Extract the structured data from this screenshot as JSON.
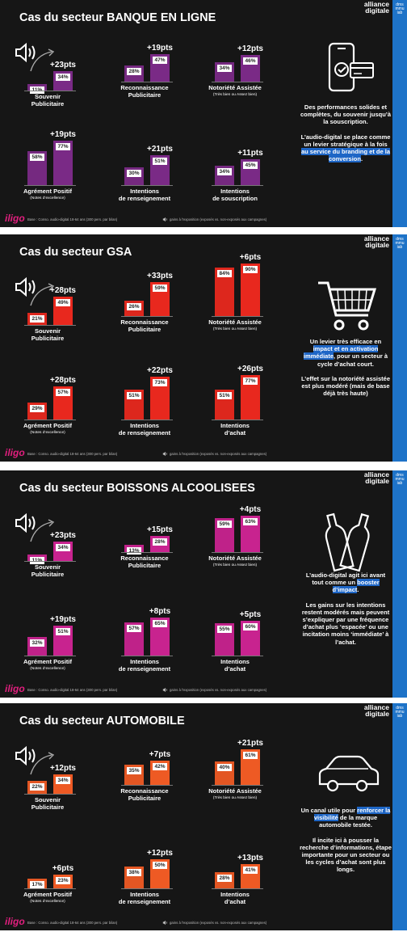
{
  "brand": {
    "line1": "alliance",
    "line2": "digitale",
    "strip": "dms\nmmu\niab"
  },
  "footer": {
    "logo": "iligo",
    "base": "Base : Conso. audio-digital 18-64 ans (300 pers. par bilan)",
    "legend": "gains à l'exposition (exposés vs. non-exposés aux campagnes)"
  },
  "colors": {
    "banque": "#7a2a86",
    "gsa": "#e8281e",
    "boissons": "#c8238f",
    "auto": "#ee5a24"
  },
  "panels": [
    {
      "title": "Cas du secteur BANQUE EN LIGNE",
      "icon": "phone-card-icon",
      "side": [
        {
          "parts": [
            {
              "t": "Des performances solides et complètes, du souvenir jusqu’à la souscription.",
              "h": false
            }
          ]
        },
        {
          "parts": [
            {
              "t": "L’audio-digital se place comme un levier stratégique à la fois ",
              "h": false
            },
            {
              "t": "au service du branding et de la conversion",
              "h": true
            },
            {
              "t": ".",
              "h": false
            }
          ]
        }
      ]
    },
    {
      "title": "Cas du secteur GSA",
      "icon": "shopping-cart-icon",
      "side": [
        {
          "parts": [
            {
              "t": "Un levier très efficace en ",
              "h": false
            },
            {
              "t": "impact et en activation immédiate",
              "h": true
            },
            {
              "t": ", pour un secteur à cycle d’achat court.",
              "h": false
            }
          ]
        },
        {
          "parts": [
            {
              "t": "L’effet sur la notoriété assistée est plus modéré (mais de base déjà très haute)",
              "h": false
            }
          ]
        }
      ]
    },
    {
      "title": "Cas du secteur BOISSONS ALCOOLISEES",
      "icon": "bottles-icon",
      "side": [
        {
          "parts": [
            {
              "t": "L’audio-digital agit ici avant tout comme un ",
              "h": false
            },
            {
              "t": "booster d’impact",
              "h": true
            },
            {
              "t": ".",
              "h": false
            }
          ]
        },
        {
          "parts": [
            {
              "t": "Les gains sur les intentions restent modérés mais peuvent s’expliquer par une fréquence d’achat plus ‘espacée’ ou une incitation moins ‘immédiate’ à l’achat.",
              "h": false
            }
          ]
        }
      ]
    },
    {
      "title": "Cas du secteur AUTOMOBILE",
      "icon": "car-icon",
      "side": [
        {
          "parts": [
            {
              "t": "Un canal utile pour ",
              "h": false
            },
            {
              "t": "renforcer la visibilité",
              "h": true
            },
            {
              "t": " de la marque automobile testée.",
              "h": false
            }
          ]
        },
        {
          "parts": [
            {
              "t": "Il incite ici à pousser la recherche d’informations, étape importante pour un secteur ou les cycles d’achat sont plus longs.",
              "h": false
            }
          ]
        }
      ]
    }
  ],
  "chart_data": [
    {
      "type": "bar",
      "title": "Cas du secteur BANQUE EN LIGNE",
      "color": "#7a2a86",
      "groups": [
        {
          "label": "Souvenir\nPublicitaire",
          "sub": "",
          "values": [
            11,
            34
          ],
          "gain": "+23pts"
        },
        {
          "label": "Reconnaissance\nPublicitaire",
          "sub": "",
          "values": [
            28,
            47
          ],
          "gain": "+19pts"
        },
        {
          "label": "Notoriété Assistée",
          "sub": "(Très bien ou Assez bien)",
          "values": [
            34,
            46
          ],
          "gain": "+12pts"
        },
        {
          "label": "Agrément Positif",
          "sub": "(Notes d’excellence)",
          "values": [
            58,
            77
          ],
          "gain": "+19pts"
        },
        {
          "label": "Intentions\nde renseignement",
          "sub": "",
          "values": [
            30,
            51
          ],
          "gain": "+21pts"
        },
        {
          "label": "Intentions\nde souscription",
          "sub": "",
          "values": [
            34,
            45
          ],
          "gain": "+11pts"
        }
      ]
    },
    {
      "type": "bar",
      "title": "Cas du secteur GSA",
      "color": "#e8281e",
      "groups": [
        {
          "label": "Souvenir\nPublicitaire",
          "sub": "",
          "values": [
            21,
            49
          ],
          "gain": "+28pts"
        },
        {
          "label": "Reconnaissance\nPublicitaire",
          "sub": "",
          "values": [
            26,
            59
          ],
          "gain": "+33pts"
        },
        {
          "label": "Notoriété Assistée",
          "sub": "(Très bien ou Assez bien)",
          "values": [
            84,
            90
          ],
          "gain": "+6pts"
        },
        {
          "label": "Agrément Positif",
          "sub": "(Notes d’excellence)",
          "values": [
            29,
            57
          ],
          "gain": "+28pts"
        },
        {
          "label": "Intentions\nde renseignement",
          "sub": "",
          "values": [
            51,
            73
          ],
          "gain": "+22pts"
        },
        {
          "label": "Intentions\nd’achat",
          "sub": "",
          "values": [
            51,
            77
          ],
          "gain": "+26pts"
        }
      ]
    },
    {
      "type": "bar",
      "title": "Cas du secteur BOISSONS ALCOOLISEES",
      "color": "#c8238f",
      "groups": [
        {
          "label": "Souvenir\nPublicitaire",
          "sub": "",
          "values": [
            11,
            34
          ],
          "gain": "+23pts"
        },
        {
          "label": "Reconnaissance\nPublicitaire",
          "sub": "",
          "values": [
            13,
            28
          ],
          "gain": "+15pts"
        },
        {
          "label": "Notoriété Assistée",
          "sub": "(Très bien ou Assez bien)",
          "values": [
            59,
            63
          ],
          "gain": "+4pts"
        },
        {
          "label": "Agrément Positif",
          "sub": "(Notes d’excellence)",
          "values": [
            32,
            51
          ],
          "gain": "+19pts"
        },
        {
          "label": "Intentions\nde renseignement",
          "sub": "",
          "values": [
            57,
            65
          ],
          "gain": "+8pts"
        },
        {
          "label": "Intentions\nd’achat",
          "sub": "",
          "values": [
            55,
            60
          ],
          "gain": "+5pts"
        }
      ]
    },
    {
      "type": "bar",
      "title": "Cas du secteur AUTOMOBILE",
      "color": "#ee5a24",
      "groups": [
        {
          "label": "Souvenir\nPublicitaire",
          "sub": "",
          "values": [
            22,
            34
          ],
          "gain": "+12pts"
        },
        {
          "label": "Reconnaissance\nPublicitaire",
          "sub": "",
          "values": [
            35,
            42
          ],
          "gain": "+7pts"
        },
        {
          "label": "Notoriété Assistée",
          "sub": "(Très bien ou Assez bien)",
          "values": [
            40,
            61
          ],
          "gain": "+21pts"
        },
        {
          "label": "Agrément Positif",
          "sub": "(Notes d’excellence)",
          "values": [
            17,
            23
          ],
          "gain": "+6pts"
        },
        {
          "label": "Intentions\nde renseignement",
          "sub": "",
          "values": [
            38,
            50
          ],
          "gain": "+12pts"
        },
        {
          "label": "Intentions\nd’achat",
          "sub": "",
          "values": [
            28,
            41
          ],
          "gain": "+13pts"
        }
      ]
    }
  ]
}
